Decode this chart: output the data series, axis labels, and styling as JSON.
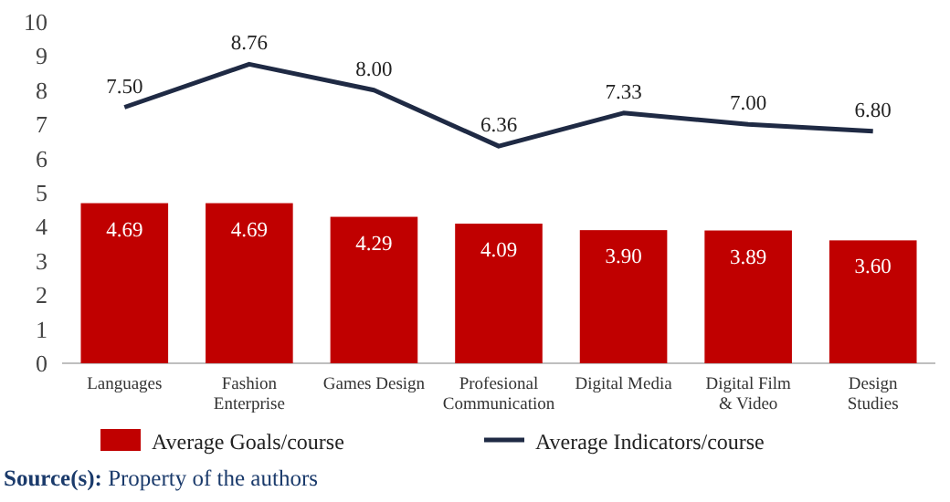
{
  "chart_data": {
    "type": "bar",
    "categories": [
      "Languages",
      "Fashion Enterprise",
      "Games Design",
      "Profesional Communication",
      "Digital Media",
      "Digital Film & Video",
      "Design Studies"
    ],
    "series": [
      {
        "name": "Average Goals/course",
        "color": "#c00000",
        "values": [
          4.69,
          4.69,
          4.29,
          4.09,
          3.9,
          3.89,
          3.6
        ],
        "value_labels": [
          "4.69",
          "4.69",
          "4.29",
          "4.09",
          "3.90",
          "3.89",
          "3.60"
        ]
      },
      {
        "name": "Average Indicators/course",
        "type": "line",
        "color": "#1f2a44",
        "values": [
          7.5,
          8.76,
          8.0,
          6.36,
          7.33,
          7.0,
          6.8
        ],
        "value_labels": [
          "7.50",
          "8.76",
          "8.00",
          "6.36",
          "7.33",
          "7.00",
          "6.80"
        ]
      }
    ],
    "ylim": [
      0,
      10
    ],
    "yticks": [
      0,
      1,
      2,
      3,
      4,
      5,
      6,
      7,
      8,
      9,
      10
    ],
    "legend": "bottom",
    "grid": false,
    "annotations": [
      "Source(s): Property of the authors"
    ]
  }
}
